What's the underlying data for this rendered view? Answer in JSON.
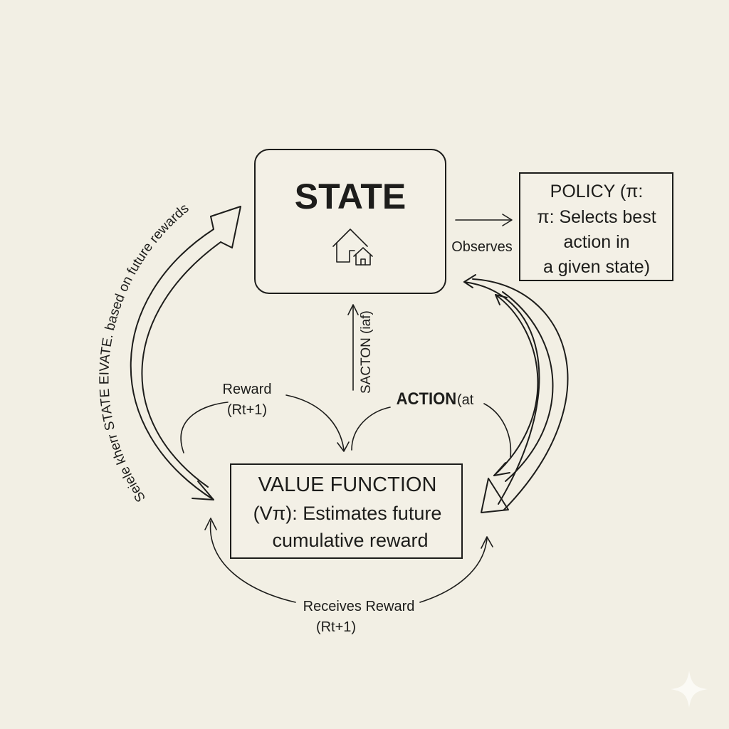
{
  "state_box": {
    "title": "STATE",
    "icon": "house-icon"
  },
  "policy_box": {
    "lines": [
      "POLICY (π:",
      "π: Selects best",
      "action in",
      "a given state)"
    ]
  },
  "value_box": {
    "lines": [
      "VALUE FUNCTION",
      "(Vπ): Estimates future",
      "cumulative reward"
    ]
  },
  "edges": {
    "observes": "Observes",
    "reward_line1": "Reward",
    "reward_line2": "(Rt+1)",
    "saction": "SACTON (iaf)",
    "action": "ACTION",
    "action_suffix": "(at",
    "receives_line1": "Receives Reward",
    "receives_line2": "(Rt+1)",
    "curved_label": "Seiele kherr STATE EIVATE. based on future rewards"
  },
  "colors": {
    "background": "#f2efe4",
    "ink": "#1d1d1b"
  }
}
